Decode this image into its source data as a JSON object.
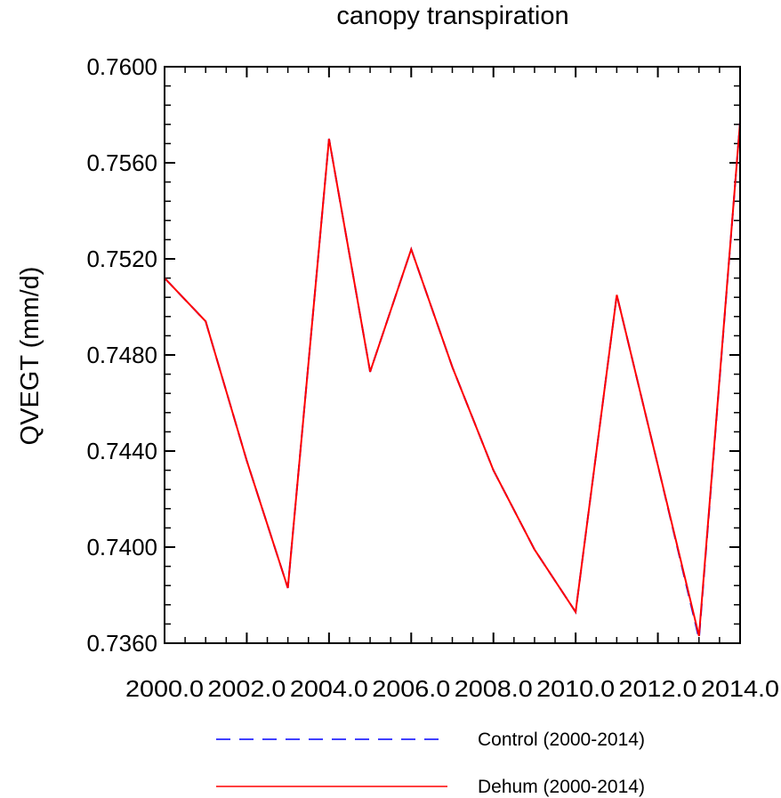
{
  "chart_data": {
    "type": "line",
    "title": "canopy transpiration",
    "xlabel": "",
    "ylabel": "QVEGT  (mm/d)",
    "xlim": [
      2000,
      2014
    ],
    "ylim": [
      0.736,
      0.76
    ],
    "xticks": [
      2000,
      2002,
      2004,
      2006,
      2008,
      2010,
      2012,
      2014
    ],
    "xtick_labels": [
      "2000.0",
      "2002.0",
      "2004.0",
      "2006.0",
      "2008.0",
      "2010.0",
      "2012.0",
      "2014.0"
    ],
    "yticks": [
      0.736,
      0.74,
      0.744,
      0.748,
      0.752,
      0.756,
      0.76
    ],
    "ytick_labels": [
      "0.7360",
      "0.7400",
      "0.7440",
      "0.7480",
      "0.7520",
      "0.7560",
      "0.7600"
    ],
    "grid": false,
    "legend_position": "bottom",
    "x": [
      2000,
      2001,
      2002,
      2003,
      2004,
      2005,
      2006,
      2007,
      2008,
      2009,
      2010,
      2011,
      2012,
      2013,
      2014
    ],
    "series": [
      {
        "name": "Control (2000-2014)",
        "color": "#0000ff",
        "dash": "dashed",
        "values": [
          0.7512,
          0.7494,
          0.7436,
          0.7383,
          0.757,
          0.7473,
          0.7524,
          0.7475,
          0.7432,
          0.7399,
          0.7373,
          0.7505,
          0.7434,
          0.7362,
          0.7577
        ]
      },
      {
        "name": "Dehum (2000-2014)",
        "color": "#ff0000",
        "dash": "solid",
        "values": [
          0.7512,
          0.7494,
          0.7436,
          0.7383,
          0.757,
          0.7473,
          0.7524,
          0.7475,
          0.7432,
          0.7399,
          0.7373,
          0.7505,
          0.7434,
          0.7363,
          0.7577
        ]
      }
    ]
  }
}
